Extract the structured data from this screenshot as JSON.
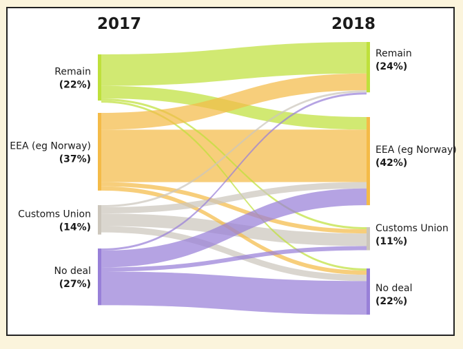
{
  "chart_data": {
    "type": "sankey",
    "columns": [
      "2017",
      "2018"
    ],
    "categories": [
      "Remain",
      "EEA (eg Norway)",
      "Customs Union",
      "No deal"
    ],
    "colors": {
      "Remain": "#bfe03c",
      "EEA (eg Norway)": "#f4bb48",
      "Customs Union": "#ccc6bc",
      "No deal": "#9880d8"
    },
    "nodes_2017": [
      {
        "name": "Remain",
        "label": "Remain",
        "pct_label": "(22%)",
        "value": 22
      },
      {
        "name": "EEA (eg Norway)",
        "label": "EEA (eg Norway)",
        "pct_label": "(37%)",
        "value": 37
      },
      {
        "name": "Customs Union",
        "label": "Customs Union",
        "pct_label": "(14%)",
        "value": 14
      },
      {
        "name": "No deal",
        "label": "No deal",
        "pct_label": "(27%)",
        "value": 27
      }
    ],
    "nodes_2018": [
      {
        "name": "Remain",
        "label": "Remain",
        "pct_label": "(24%)",
        "value": 24
      },
      {
        "name": "EEA (eg Norway)",
        "label": "EEA (eg Norway)",
        "pct_label": "(42%)",
        "value": 42
      },
      {
        "name": "Customs Union",
        "label": "Customs Union",
        "pct_label": "(11%)",
        "value": 11
      },
      {
        "name": "No deal",
        "label": "No deal",
        "pct_label": "(22%)",
        "value": 22
      }
    ],
    "flows": [
      {
        "from": "Remain",
        "to": "Remain",
        "value": 15
      },
      {
        "from": "Remain",
        "to": "EEA (eg Norway)",
        "value": 6
      },
      {
        "from": "Remain",
        "to": "Customs Union",
        "value": 1
      },
      {
        "from": "Remain",
        "to": "No deal",
        "value": 1
      },
      {
        "from": "EEA (eg Norway)",
        "to": "Remain",
        "value": 8
      },
      {
        "from": "EEA (eg Norway)",
        "to": "EEA (eg Norway)",
        "value": 25
      },
      {
        "from": "EEA (eg Norway)",
        "to": "Customs Union",
        "value": 2
      },
      {
        "from": "EEA (eg Norway)",
        "to": "No deal",
        "value": 2
      },
      {
        "from": "Customs Union",
        "to": "Remain",
        "value": 1
      },
      {
        "from": "Customs Union",
        "to": "EEA (eg Norway)",
        "value": 3
      },
      {
        "from": "Customs Union",
        "to": "Customs Union",
        "value": 6
      },
      {
        "from": "Customs Union",
        "to": "No deal",
        "value": 3
      },
      {
        "from": "No deal",
        "to": "Remain",
        "value": 1
      },
      {
        "from": "No deal",
        "to": "EEA (eg Norway)",
        "value": 8
      },
      {
        "from": "No deal",
        "to": "Customs Union",
        "value": 2
      },
      {
        "from": "No deal",
        "to": "No deal",
        "value": 16
      }
    ]
  }
}
